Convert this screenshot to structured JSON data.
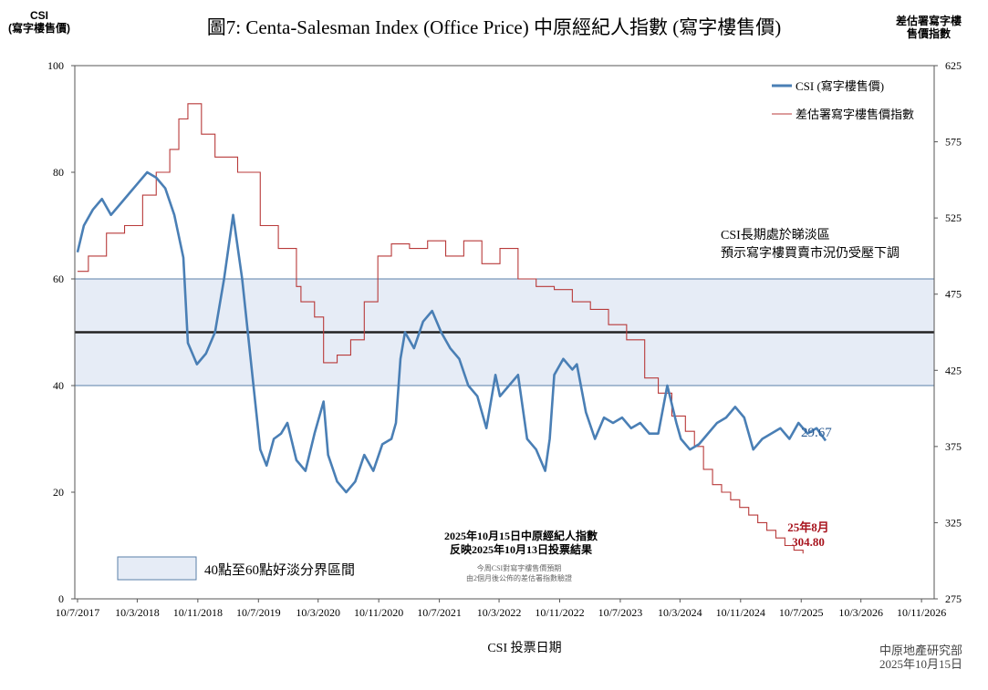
{
  "header": {
    "title": "圖7: Centa-Salesman Index (Office Price)   中原經紀人指數 (寫字樓售價)",
    "left_axis_title_line1": "CSI",
    "left_axis_title_line2": "(寫字樓售價)",
    "right_axis_title_line1": "差估署寫字樓",
    "right_axis_title_line2": "售價指數"
  },
  "footer": {
    "x_axis_title": "CSI 投票日期",
    "source_line1": "中原地產研究部",
    "source_line2": "2025年10月15日"
  },
  "colors": {
    "csi": "#4a7fb5",
    "rvd": "#b83a3a",
    "band_fill": "#e6ecf6",
    "band_stroke": "#5a7fa8",
    "midline": "#222222",
    "annotation_red": "#a8141e",
    "last_value": "#2c5c93"
  },
  "chart_data": {
    "type": "line",
    "title": "圖7: Centa-Salesman Index (Office Price)   中原經紀人指數 (寫字樓售價)",
    "xlabel": "CSI 投票日期",
    "ylabel": "CSI (寫字樓售價)",
    "y2label": "差估署寫字樓售價指數",
    "ylim": [
      0,
      100
    ],
    "y2lim": [
      275,
      625
    ],
    "yticks": [
      0,
      20,
      40,
      60,
      80,
      100
    ],
    "y2ticks": [
      275,
      325,
      375,
      425,
      475,
      525,
      575,
      625
    ],
    "x_range": [
      2017.5,
      2027.0
    ],
    "x_tick_labels": [
      "10/7/2017",
      "10/3/2018",
      "10/11/2018",
      "10/7/2019",
      "10/3/2020",
      "10/11/2020",
      "10/7/2021",
      "10/3/2022",
      "10/11/2022",
      "10/7/2023",
      "10/3/2024",
      "10/11/2024",
      "10/7/2025",
      "10/3/2026",
      "10/11/2026"
    ],
    "x_ticks": [
      2017.53,
      2018.19,
      2018.86,
      2019.53,
      2020.19,
      2020.86,
      2021.53,
      2022.19,
      2022.86,
      2023.53,
      2024.19,
      2024.86,
      2025.53,
      2026.19,
      2026.86
    ],
    "band": {
      "from": 40,
      "to": 60,
      "mid": 50,
      "label": "40點至60點好淡分界區間"
    },
    "series": [
      {
        "name": "CSI (寫字樓售價)",
        "axis": "left",
        "x": [
          2017.53,
          2017.6,
          2017.7,
          2017.8,
          2017.9,
          2018.0,
          2018.1,
          2018.2,
          2018.3,
          2018.4,
          2018.5,
          2018.6,
          2018.7,
          2018.75,
          2018.85,
          2018.95,
          2019.05,
          2019.15,
          2019.25,
          2019.35,
          2019.45,
          2019.55,
          2019.62,
          2019.7,
          2019.78,
          2019.85,
          2019.95,
          2020.05,
          2020.15,
          2020.25,
          2020.3,
          2020.4,
          2020.5,
          2020.6,
          2020.7,
          2020.8,
          2020.9,
          2021.0,
          2021.05,
          2021.1,
          2021.15,
          2021.25,
          2021.35,
          2021.45,
          2021.55,
          2021.65,
          2021.75,
          2021.85,
          2021.95,
          2022.05,
          2022.15,
          2022.2,
          2022.3,
          2022.4,
          2022.5,
          2022.6,
          2022.7,
          2022.75,
          2022.8,
          2022.9,
          2023.0,
          2023.05,
          2023.15,
          2023.25,
          2023.35,
          2023.45,
          2023.55,
          2023.65,
          2023.75,
          2023.85,
          2023.95,
          2024.05,
          2024.15,
          2024.2,
          2024.3,
          2024.4,
          2024.5,
          2024.6,
          2024.7,
          2024.8,
          2024.9,
          2025.0,
          2025.1,
          2025.2,
          2025.3,
          2025.4,
          2025.5,
          2025.6,
          2025.7,
          2025.8
        ],
        "values": [
          65,
          70,
          73,
          75,
          72,
          74,
          76,
          78,
          80,
          79,
          77,
          72,
          64,
          48,
          44,
          46,
          50,
          60,
          72,
          60,
          44,
          28,
          25,
          30,
          31,
          33,
          26,
          24,
          31,
          37,
          27,
          22,
          20,
          22,
          27,
          24,
          29,
          30,
          33,
          45,
          50,
          47,
          52,
          54,
          50,
          47,
          45,
          40,
          38,
          32,
          42,
          38,
          40,
          42,
          30,
          28,
          24,
          30,
          42,
          45,
          43,
          44,
          35,
          30,
          34,
          33,
          34,
          32,
          33,
          31,
          31,
          40,
          33,
          30,
          28,
          29,
          31,
          33,
          34,
          36,
          34,
          28,
          30,
          31,
          32,
          30,
          33,
          31,
          32,
          29.67
        ]
      },
      {
        "name": "差估署寫字樓售價指數",
        "axis": "right",
        "x": [
          2017.53,
          2017.65,
          2017.85,
          2018.05,
          2018.25,
          2018.4,
          2018.55,
          2018.65,
          2018.75,
          2018.9,
          2019.05,
          2019.3,
          2019.55,
          2019.75,
          2019.95,
          2020.0,
          2020.15,
          2020.25,
          2020.4,
          2020.55,
          2020.7,
          2020.85,
          2021.0,
          2021.2,
          2021.4,
          2021.6,
          2021.8,
          2022.0,
          2022.2,
          2022.4,
          2022.6,
          2022.8,
          2023.0,
          2023.2,
          2023.4,
          2023.6,
          2023.8,
          2023.95,
          2024.1,
          2024.25,
          2024.35,
          2024.45,
          2024.55,
          2024.65,
          2024.75,
          2024.85,
          2024.95,
          2025.05,
          2025.15,
          2025.25,
          2025.35,
          2025.45,
          2025.55
        ],
        "values": [
          490,
          500,
          515,
          520,
          540,
          555,
          570,
          590,
          600,
          580,
          565,
          555,
          520,
          505,
          480,
          470,
          460,
          430,
          435,
          445,
          470,
          500,
          508,
          505,
          510,
          500,
          510,
          495,
          505,
          485,
          480,
          478,
          470,
          465,
          455,
          445,
          420,
          410,
          395,
          385,
          375,
          360,
          350,
          345,
          340,
          335,
          330,
          325,
          320,
          315,
          310,
          307,
          304.8
        ]
      }
    ],
    "annotations": {
      "trend_note_line1": "CSI長期處於睇淡區",
      "trend_note_line2": "預示寫字樓買賣市況仍受壓下調",
      "last_csi_value": "29.67",
      "rvd_latest_label": "25年8月",
      "rvd_latest_value": "304.80",
      "index_note_line1": "2025年10月15日中原經紀人指數",
      "index_note_line2": "反映2025年10月13日投票結果",
      "lead_note_line1": "今周CSI對寫字樓售價預期",
      "lead_note_line2": "由2個月後公佈的差估署指數驗證"
    }
  }
}
